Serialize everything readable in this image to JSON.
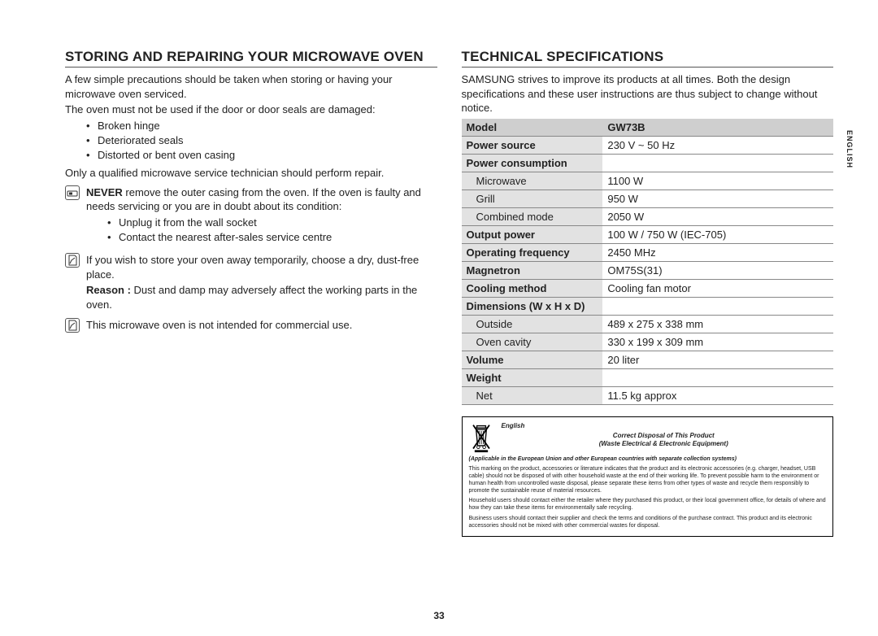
{
  "page_number": "33",
  "side_language_tab": "ENGLISH",
  "left": {
    "heading": "STORING AND REPAIRING YOUR MICROWAVE OVEN",
    "intro1": "A few simple precautions should be taken when storing or having your microwave oven serviced.",
    "intro2": "The oven must not be used if the door or door seals are damaged:",
    "damage_list": [
      "Broken hinge",
      "Deteriorated seals",
      "Distorted or bent oven casing"
    ],
    "repair_note": "Only a qualified microwave service technician should perform repair.",
    "never_bold": "NEVER",
    "never_text": " remove the outer casing from the oven. If the oven is faulty and needs servicing or you are in doubt about its condition:",
    "never_list": [
      "Unplug it from the wall socket",
      "Contact the nearest after-sales service centre"
    ],
    "store_text": "If you wish to store your oven away temporarily, choose a dry, dust-free place.",
    "reason_bold": "Reason :",
    "reason_text": " Dust and damp may adversely affect the working parts in the oven.",
    "commercial": "This microwave oven is not intended for commercial use."
  },
  "right": {
    "heading": "TECHNICAL SPECIFICATIONS",
    "intro": "SAMSUNG strives to improve its products at all times. Both the design specifications and these user instructions are thus subject to change without notice.",
    "table": {
      "header_label": "Model",
      "header_value": "GW73B",
      "rows": [
        {
          "label": "Power source",
          "value": "230 V ~ 50 Hz",
          "sub": false
        },
        {
          "label": "Power consumption",
          "value": "",
          "sub": false
        },
        {
          "label": "Microwave",
          "value": "1100 W",
          "sub": true
        },
        {
          "label": "Grill",
          "value": "950 W",
          "sub": true
        },
        {
          "label": "Combined mode",
          "value": "2050 W",
          "sub": true
        },
        {
          "label": "Output power",
          "value": "100 W / 750 W (IEC-705)",
          "sub": false
        },
        {
          "label": "Operating frequency",
          "value": "2450 MHz",
          "sub": false
        },
        {
          "label": "Magnetron",
          "value": "OM75S(31)",
          "sub": false
        },
        {
          "label": "Cooling method",
          "value": "Cooling fan motor",
          "sub": false
        },
        {
          "label": "Dimensions (W x H x D)",
          "value": "",
          "sub": false
        },
        {
          "label": "Outside",
          "value": "489 x 275 x 338 mm",
          "sub": true
        },
        {
          "label": "Oven cavity",
          "value": "330 x 199 x 309 mm",
          "sub": true
        },
        {
          "label": "Volume",
          "value": "20 liter",
          "sub": false
        },
        {
          "label": "Weight",
          "value": "",
          "sub": false
        },
        {
          "label": "Net",
          "value": "11.5 kg approx",
          "sub": true
        }
      ]
    }
  },
  "disposal": {
    "lang": "English",
    "title1": "Correct Disposal of This Product",
    "title2": "(Waste Electrical & Electronic Equipment)",
    "applicable": "(Applicable in the European Union and other European countries with separate collection systems)",
    "p1": "This marking on the product, accessories or literature indicates that the product and its electronic accessories (e.g. charger, headset, USB cable) should not be disposed of with other household waste at the end of their working life. To prevent possible harm to the environment or human health from uncontrolled waste disposal, please separate these items from other types of waste and recycle them responsibly to promote the sustainable reuse of material resources.",
    "p2": "Household users should contact either the retailer where they purchased this product, or their local government office, for details of where and how they can take these items for environmentally safe recycling.",
    "p3": "Business users should contact their supplier and check the terms and conditions of the purchase contract. This product and its electronic accessories should not be mixed with other commercial wastes for disposal."
  }
}
